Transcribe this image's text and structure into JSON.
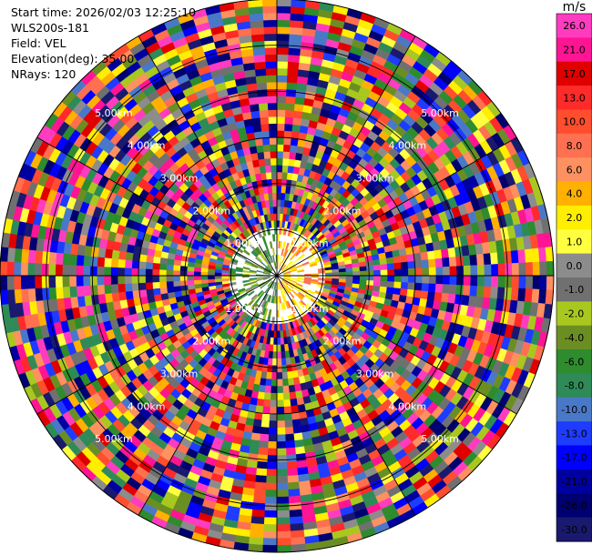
{
  "info": {
    "start_time": "Start time: 2026/02/03 12:25:10",
    "station": "WLS200s-181",
    "field": "Field: VEL",
    "elevation": "Elevation(deg): 35.00",
    "nrays": "NRays: 120"
  },
  "chart_data": {
    "type": "heatmap",
    "subtype": "radar-ppi",
    "field": "VEL",
    "units": "m/s",
    "elevation_deg": 35.0,
    "n_rays": 120,
    "max_range_km": 6.0,
    "range_ring_labels": [
      "1.00km",
      "2.00km",
      "3.00km",
      "4.00km",
      "5.00km"
    ],
    "colorbar": {
      "unit_label": "m/s",
      "ticks": [
        "26.0",
        "21.0",
        "17.0",
        "13.0",
        "10.0",
        "8.0",
        "6.0",
        "4.0",
        "2.0",
        "1.0",
        "0.0",
        "-1.0",
        "-2.0",
        "-4.0",
        "-6.0",
        "-8.0",
        "-10.0",
        "-13.0",
        "-17.0",
        "-21.0",
        "-26.0",
        "-30.0"
      ],
      "colors": [
        "#ff3cbf",
        "#ff1493",
        "#e00000",
        "#ff2a2a",
        "#ff4d2e",
        "#ff7050",
        "#ff9060",
        "#ffb000",
        "#ffee00",
        "#ffff40",
        "#8c8c8c",
        "#707070",
        "#a8c820",
        "#6b8e23",
        "#2e8b2e",
        "#2e8b57",
        "#4a78c8",
        "#1e3cff",
        "#0000ff",
        "#0000a0",
        "#000070",
        "#191970"
      ]
    },
    "near_field": {
      "radius_km": 1.0,
      "approach_colors": [
        "#6b8e23",
        "#2e8b57",
        "#a8c820",
        "#8c8c8c",
        "#2e8b2e"
      ],
      "recede_colors": [
        "#ffee00",
        "#ffff40",
        "#ffb000",
        "#ff7050"
      ]
    },
    "grid": true
  }
}
